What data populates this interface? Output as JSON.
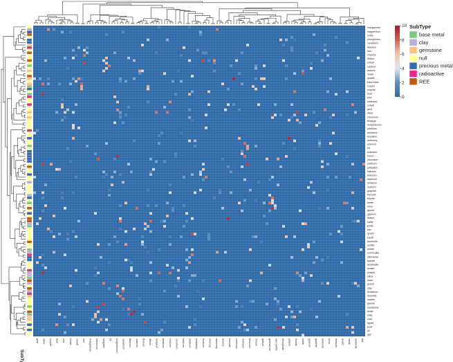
{
  "chart_data": {
    "type": "heatmap",
    "title": "",
    "xlabel": "",
    "ylabel": "",
    "annotation_title": "SubType",
    "colorbar": {
      "ticks": [
        0,
        2,
        4,
        6,
        8,
        10
      ],
      "range": [
        0,
        10
      ],
      "colors": [
        "#2e6aa8",
        "#5b8fc0",
        "#dde6ef",
        "#f6c7a6",
        "#d6604d",
        "#b2182b"
      ]
    },
    "subtype_legend": [
      {
        "label": "base metal",
        "color": "#7fc97f"
      },
      {
        "label": "clay",
        "color": "#beaed4"
      },
      {
        "label": "gemstone",
        "color": "#fdc086"
      },
      {
        "label": "null",
        "color": "#ffff99"
      },
      {
        "label": "precious metal",
        "color": "#386cb0"
      },
      {
        "label": "radioactive",
        "color": "#e7298a"
      },
      {
        "label": "REE",
        "color": "#bf5b17"
      }
    ],
    "n_rows": 120,
    "n_cols": 120,
    "row_labels_visible": [
      "manganese",
      "magnesium",
      "sulfur",
      "phosphorus",
      "vanadium",
      "titanium",
      "iron",
      "chlorine",
      "lithium",
      "cobalt",
      "calcium",
      "arsenic",
      "nickel",
      "apatite",
      "trace base",
      "copper",
      "sulphur",
      "lead",
      "zinc",
      "cadmium",
      "cobalt",
      "gold",
      "silver",
      "chromium",
      "feldspar",
      "molybdenum",
      "rubidium",
      "strontium",
      "beryllium",
      "antimony",
      "uranium",
      "tin",
      "selenium",
      "boron",
      "zirconium",
      "platinum",
      "palladium",
      "hafnium",
      "tellurium",
      "diamond",
      "tantalum",
      "niobium",
      "graphite",
      "bismuth",
      "fluorite",
      "barite",
      "mica",
      "garnet",
      "gypsum",
      "lithium",
      "halite",
      "pyrite",
      "talc",
      "quartz",
      "kaolin",
      "bentonite",
      "zeolite",
      "perlite",
      "vermiculite",
      "sillimanite",
      "kyanite",
      "andalusite",
      "borate",
      "potash",
      "silica",
      "sand",
      "gravel",
      "clay",
      "limestone",
      "dolomite",
      "marble",
      "granite",
      "sandstone",
      "shale",
      "slate",
      "coal",
      "lignite",
      "peat",
      "oil",
      "gas"
    ],
    "col_labels_visible": [
      "gold",
      "silver",
      "copper",
      "lead",
      "zinc",
      "nickel",
      "cobalt",
      "iron",
      "manganese",
      "chromium",
      "tungsten",
      "tin",
      "molybdenum",
      "vanadium",
      "titanium",
      "uranium",
      "thorium",
      "lithium",
      "beryllium",
      "tantalum",
      "niobium",
      "zirconium",
      "hafnium",
      "platinum",
      "palladium",
      "rhodium",
      "mercury",
      "antimony",
      "arsenic",
      "bismuth",
      "cadmium",
      "selenium",
      "tellurium",
      "indium",
      "gallium",
      "germanium",
      "rare earths",
      "phosphate",
      "potash",
      "fluorite",
      "barite",
      "gypsum",
      "graphite",
      "diamond",
      "mica",
      "feldspar",
      "quartz",
      "kaolin",
      "bentonite",
      "talc"
    ]
  }
}
